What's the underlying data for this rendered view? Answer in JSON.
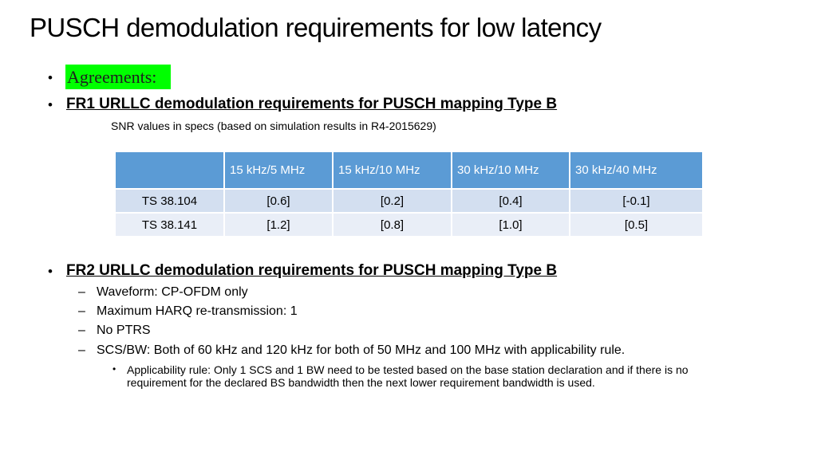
{
  "title": "PUSCH demodulation requirements for low latency",
  "agreements_label": "Agreements:",
  "fr1": {
    "heading": "FR1 URLLC demodulation requirements for PUSCH mapping Type B",
    "subtitle": "SNR values in specs (based on simulation results in R4-2015629)"
  },
  "table": {
    "columns": [
      "",
      "15 kHz/5 MHz",
      "15 kHz/10 MHz",
      "30 kHz/10 MHz",
      "30 kHz/40 MHz"
    ],
    "rows": [
      {
        "label": "TS 38.104",
        "values": [
          "[0.6]",
          "[0.2]",
          "[0.4]",
          "[-0.1]"
        ]
      },
      {
        "label": "TS 38.141",
        "values": [
          "[1.2]",
          "[0.8]",
          "[1.0]",
          "[0.5]"
        ]
      }
    ]
  },
  "fr2": {
    "heading": "FR2 URLLC demodulation requirements for PUSCH mapping Type B",
    "items": [
      "Waveform: CP-OFDM only",
      "Maximum HARQ re-transmission: 1",
      "No PTRS",
      "SCS/BW: Both of 60 kHz and 120 kHz for both of 50 MHz and 100 MHz with applicability rule."
    ],
    "subitem_line1": "Applicability rule: Only 1 SCS and 1 BW need to be tested based on the base station declaration and if there is no",
    "subitem_line2": "requirement for the declared BS bandwidth then the next lower requirement bandwidth is used."
  }
}
